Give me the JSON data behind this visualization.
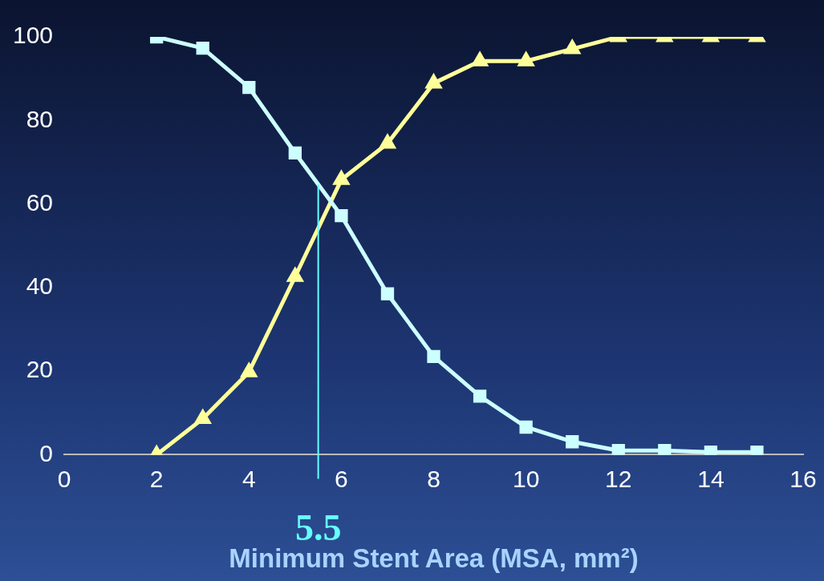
{
  "chart_data": {
    "type": "line",
    "xlabel": "Minimum Stent Area (MSA, mm²)",
    "xlim": [
      0,
      16
    ],
    "xticks": [
      0,
      2,
      4,
      6,
      8,
      10,
      12,
      14,
      16
    ],
    "ylim": [
      0,
      100
    ],
    "yticks": [
      0,
      20,
      40,
      60,
      80,
      100
    ],
    "grid": false,
    "legend": false,
    "series": [
      {
        "color": "#ccffff",
        "marker": "square",
        "x": [
          2,
          3,
          4,
          5,
          6,
          7,
          8,
          9,
          10,
          11,
          12,
          13,
          14,
          15
        ],
        "values": [
          100,
          97.3,
          87.9,
          72.2,
          57.2,
          38.5,
          23.5,
          14,
          6.6,
          3.1,
          1,
          1,
          0.6,
          0.6
        ]
      },
      {
        "color": "#ffff99",
        "marker": "triangle",
        "x": [
          2,
          3,
          4,
          5,
          6,
          7,
          8,
          9,
          10,
          11,
          12,
          13,
          14,
          15
        ],
        "values": [
          0,
          8.6,
          19.8,
          42.6,
          65.8,
          74.5,
          88.9,
          94.2,
          94.2,
          97.1,
          100,
          100,
          100,
          100
        ]
      }
    ],
    "ref_lines": [
      {
        "axis": "x",
        "value": 5.5,
        "label": "5.5",
        "color": "#66ffff"
      }
    ]
  }
}
